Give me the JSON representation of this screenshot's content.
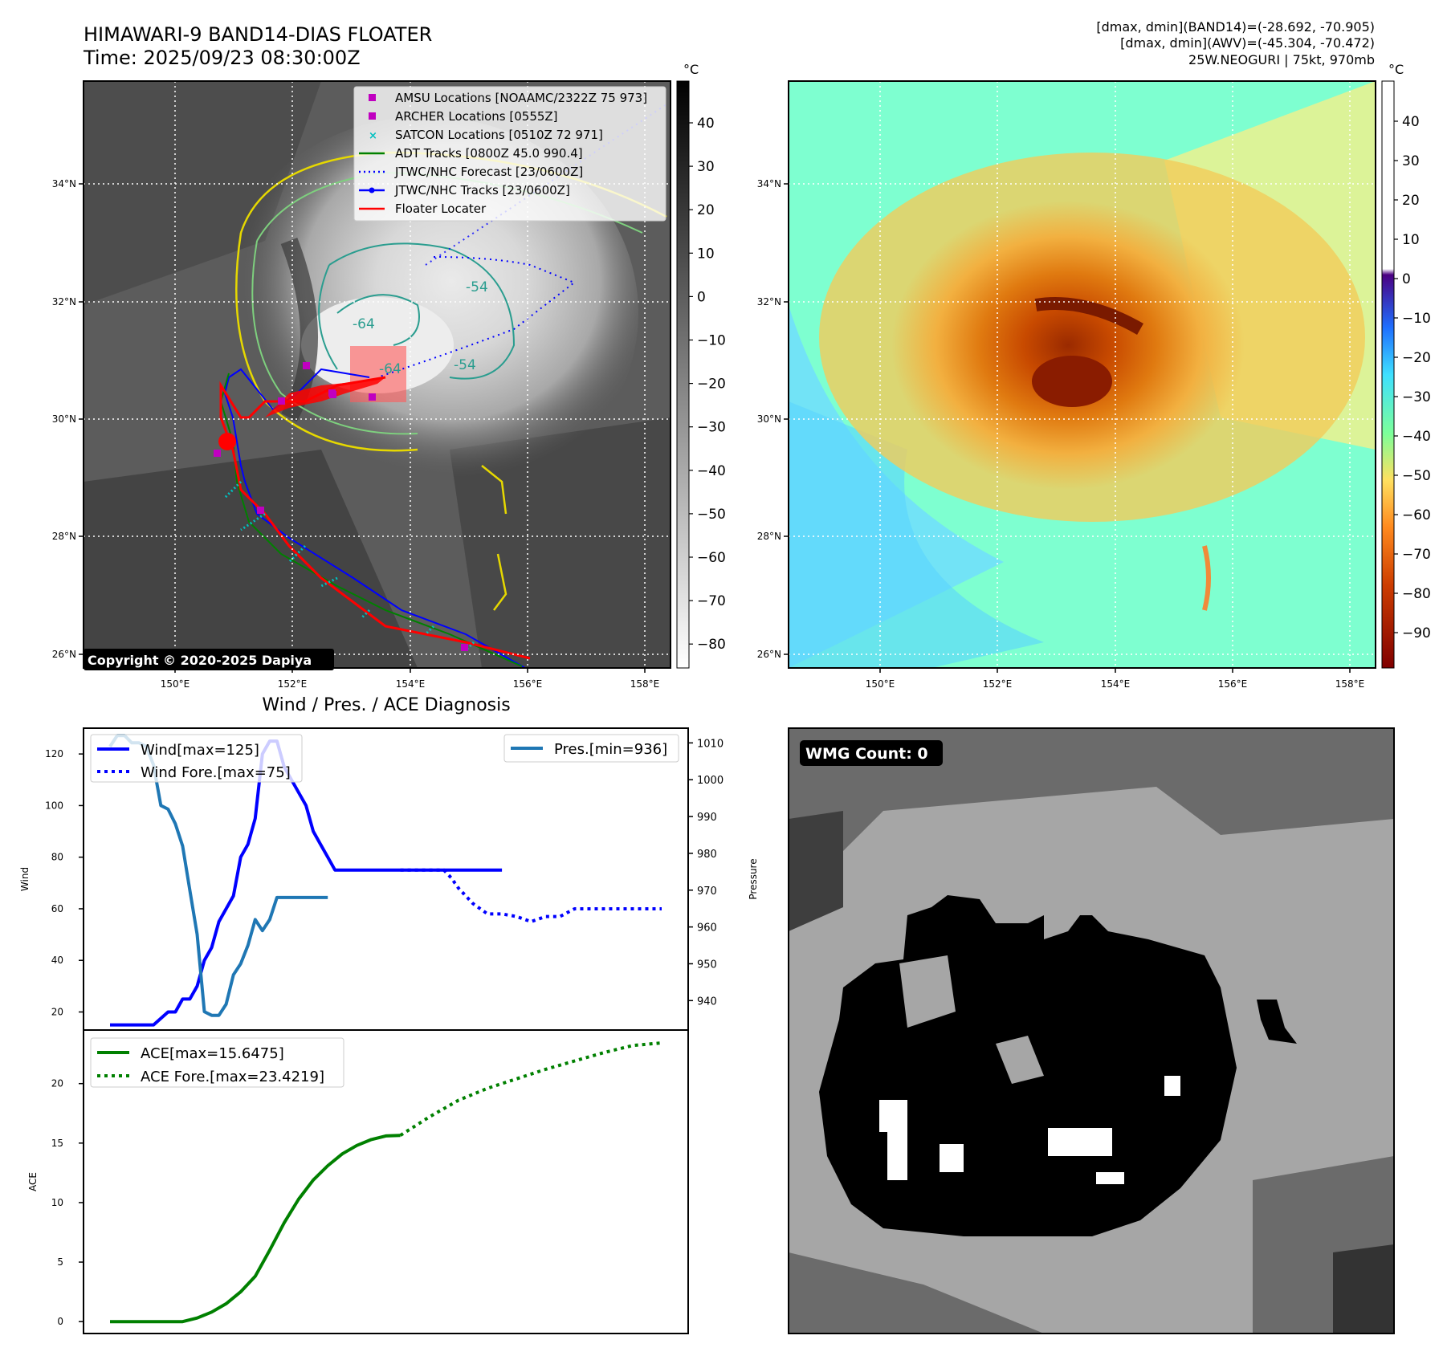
{
  "header": {
    "title_line1": "HIMAWARI-9 BAND14-DIAS FLOATER",
    "title_line2": "Time: 2025/09/23 08:30:00Z",
    "stats_line1": "[dmax, dmin](BAND14)=(-28.692, -70.905)",
    "stats_line2": "[dmax, dmin](AWV)=(-45.304, -70.472)",
    "stats_line3": "25W.NEOGURI | 75kt, 970mb"
  },
  "copyright": "Copyright © 2020-2025 Dapiya",
  "map": {
    "lat_labels": [
      "34°N",
      "32°N",
      "30°N",
      "28°N",
      "26°N"
    ],
    "lon_labels": [
      "150°E",
      "152°E",
      "154°E",
      "156°E",
      "158°E"
    ],
    "contour_labels": [
      "-64",
      "-54",
      "-54",
      "-64"
    ],
    "colorbar_unit": "°C",
    "bt_cbar_ticks": [
      "40",
      "30",
      "20",
      "10",
      "0",
      "−10",
      "−20",
      "−30",
      "−40",
      "−50",
      "−60",
      "−70",
      "−80"
    ],
    "awv_cbar_ticks": [
      "40",
      "30",
      "20",
      "10",
      "0",
      "−10",
      "−20",
      "−30",
      "−40",
      "−50",
      "−60",
      "−70",
      "−80",
      "−90"
    ],
    "legend": [
      {
        "label": "AMSU Locations [NOAAMC/2322Z 75 973]",
        "color": "#c000c0",
        "marker": "square"
      },
      {
        "label": "ARCHER Locations [0555Z]",
        "color": "#c000c0",
        "marker": "square"
      },
      {
        "label": "SATCON Locations [0510Z 72 971]",
        "color": "#00c0c0",
        "marker": "x"
      },
      {
        "label": "ADT Tracks [0800Z 45.0 990.4]",
        "color": "#008000",
        "marker": "line"
      },
      {
        "label": "JTWC/NHC Forecast [23/0600Z]",
        "color": "#0000ff",
        "marker": "dotted"
      },
      {
        "label": "JTWC/NHC Tracks [23/0600Z]",
        "color": "#0000ff",
        "marker": "line-dot"
      },
      {
        "label": "Floater Locater",
        "color": "#ff0000",
        "marker": "line"
      }
    ]
  },
  "wmg": {
    "label": "WMG Count: 0"
  },
  "chart_data": [
    {
      "type": "line",
      "title": "Wind / Pres. / ACE Diagnosis",
      "ylabel": "Wind",
      "y2label": "Pressure",
      "ylim": [
        13,
        130
      ],
      "y2lim": [
        932,
        1014
      ],
      "yticks": [
        20,
        40,
        60,
        80,
        100,
        120
      ],
      "y2ticks": [
        940,
        950,
        960,
        970,
        980,
        990,
        1000,
        1010
      ],
      "x": [
        0,
        1,
        2,
        3,
        4,
        5,
        6,
        7,
        8,
        9,
        10,
        11,
        12,
        13,
        14,
        15,
        16,
        17,
        18,
        19,
        20,
        21,
        22,
        23,
        24,
        25,
        26,
        27,
        28,
        29,
        30,
        31,
        32,
        33,
        34,
        35,
        36,
        37,
        38,
        39,
        40,
        41,
        42,
        43,
        44,
        45,
        46,
        47,
        48,
        49,
        50,
        51,
        52,
        53,
        54,
        55,
        56,
        57,
        58,
        59,
        60,
        61,
        62,
        63,
        64,
        65,
        66,
        67,
        68,
        69,
        70,
        71,
        72,
        73,
        74,
        75,
        76
      ],
      "series": [
        {
          "name": "Wind[max=125]",
          "color": "#0000ff",
          "style": "solid",
          "x": [
            0,
            6,
            8,
            9,
            10,
            11,
            12,
            13,
            14,
            15,
            16,
            17,
            18,
            19,
            20,
            21,
            22,
            23,
            24,
            25,
            26,
            27,
            28,
            29,
            30,
            31,
            32,
            33,
            34,
            35,
            36,
            37,
            38,
            39,
            40,
            41,
            42,
            43,
            44,
            45,
            46,
            47,
            48,
            49,
            50,
            51,
            52,
            53,
            54
          ],
          "values": [
            15,
            15,
            20,
            20,
            25,
            25,
            30,
            40,
            45,
            55,
            60,
            65,
            80,
            85,
            95,
            120,
            125,
            125,
            115,
            110,
            105,
            100,
            90,
            85,
            80,
            75,
            75,
            75,
            75,
            75,
            75,
            75,
            75,
            75,
            75,
            75,
            75,
            75,
            75,
            75,
            75,
            75,
            75,
            75,
            75,
            75,
            75,
            75,
            75
          ]
        },
        {
          "name": "Wind Fore.[max=75]",
          "color": "#0000ff",
          "style": "dotted",
          "x": [
            40,
            42,
            44,
            46,
            47,
            48,
            50,
            52,
            54,
            56,
            58,
            60,
            62,
            64,
            66,
            68,
            70,
            72,
            74,
            76
          ],
          "values": [
            75,
            75,
            75,
            75,
            72,
            68,
            62,
            58,
            58,
            57,
            55,
            57,
            57,
            60,
            60,
            60,
            60,
            60,
            60,
            60
          ]
        },
        {
          "name": "Pres.[min=936]",
          "color": "#1f77b4",
          "style": "solid",
          "axis": "y2",
          "x": [
            0,
            1,
            2,
            3,
            4,
            5,
            6,
            7,
            8,
            9,
            10,
            11,
            12,
            13,
            14,
            15,
            16,
            17,
            18,
            19,
            20,
            21,
            22,
            23,
            24,
            25,
            26,
            27,
            28,
            29,
            30
          ],
          "values": [
            1009,
            1012,
            1012,
            1010,
            1010,
            1009,
            1004,
            993,
            992,
            988,
            982,
            970,
            958,
            937,
            936,
            936,
            939,
            947,
            950,
            955,
            962,
            959,
            962,
            968,
            968,
            968,
            968,
            968,
            968,
            968,
            968
          ]
        }
      ]
    },
    {
      "type": "line",
      "ylabel": "ACE",
      "ylim": [
        -1,
        24.5
      ],
      "yticks": [
        0,
        5,
        10,
        15,
        20
      ],
      "series": [
        {
          "name": "ACE[max=15.6475]",
          "color": "#008000",
          "style": "solid",
          "x": [
            0,
            10,
            12,
            14,
            16,
            18,
            20,
            22,
            24,
            26,
            28,
            30,
            32,
            34,
            36,
            38,
            40
          ],
          "values": [
            0,
            0,
            0.3,
            0.8,
            1.5,
            2.5,
            3.8,
            6,
            8.3,
            10.3,
            11.9,
            13.1,
            14.1,
            14.8,
            15.3,
            15.6,
            15.6475
          ]
        },
        {
          "name": "ACE Fore.[max=23.4219]",
          "color": "#008000",
          "style": "dotted",
          "x": [
            40,
            44,
            48,
            52,
            56,
            60,
            64,
            68,
            72,
            76
          ],
          "values": [
            15.6475,
            17.2,
            18.6,
            19.6,
            20.4,
            21.2,
            21.9,
            22.6,
            23.2,
            23.4219
          ]
        }
      ]
    }
  ]
}
